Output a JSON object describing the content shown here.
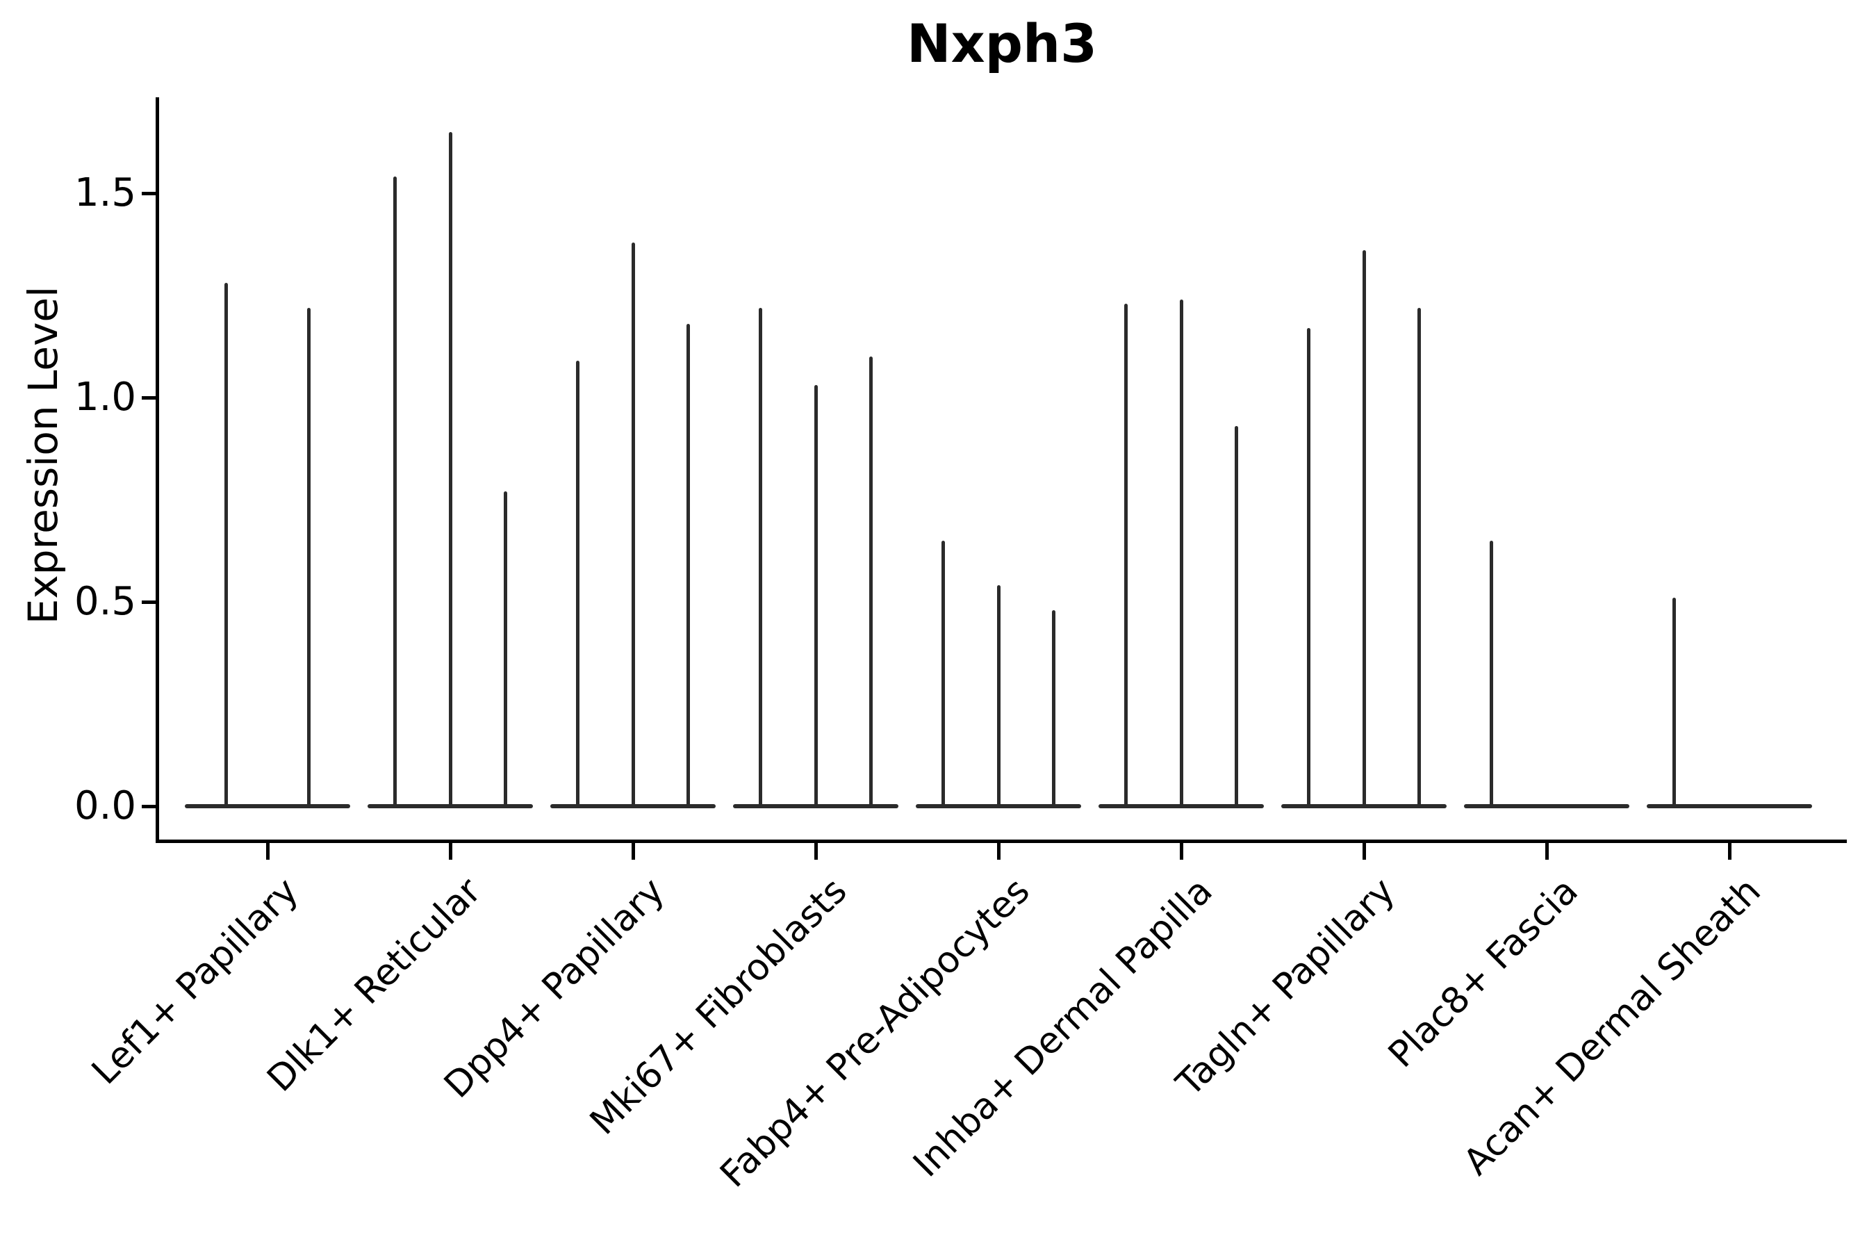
{
  "chart_data": {
    "type": "violin",
    "title": "Nxph3",
    "ylabel": "Expression Level",
    "xlabel": "",
    "yticks": [
      "0.0",
      "0.5",
      "1.0",
      "1.5"
    ],
    "ylim": [
      0,
      1.72
    ],
    "grid": false,
    "legend": "none",
    "line_color": "#2b2b2b",
    "spine_color": "#000000",
    "categories": [
      "Lef1+ Papillary",
      "Dlk1+ Reticular",
      "Dpp4+ Papillary",
      "Mki67+ Fibroblasts",
      "Fabp4+ Pre-Adipocytes",
      "Inhba+ Dermal Papilla",
      "Tagln+ Papillary",
      "Plac8+ Fascia",
      "Acan+ Dermal Sheath"
    ],
    "groups": [
      {
        "label": "Lef1+ Papillary",
        "violin_max": [
          1.28,
          1.22
        ]
      },
      {
        "label": "Dlk1+ Reticular",
        "violin_max": [
          1.54,
          1.65,
          0.77
        ]
      },
      {
        "label": "Dpp4+ Papillary",
        "violin_max": [
          1.09,
          1.38,
          1.18
        ]
      },
      {
        "label": "Mki67+ Fibroblasts",
        "violin_max": [
          1.22,
          1.03,
          1.1
        ]
      },
      {
        "label": "Fabp4+ Pre-Adipocytes",
        "violin_max": [
          0.65,
          0.54,
          0.48
        ]
      },
      {
        "label": "Inhba+ Dermal Papilla",
        "violin_max": [
          1.23,
          1.24,
          0.93
        ]
      },
      {
        "label": "Tagln+ Papillary",
        "violin_max": [
          1.17,
          1.36,
          1.22
        ]
      },
      {
        "label": "Plac8+ Fascia",
        "violin_max": [
          0.65,
          0.0,
          0.0
        ]
      },
      {
        "label": "Acan+ Dermal Sheath",
        "violin_max": [
          0.51,
          0.0,
          0.0
        ]
      }
    ]
  }
}
